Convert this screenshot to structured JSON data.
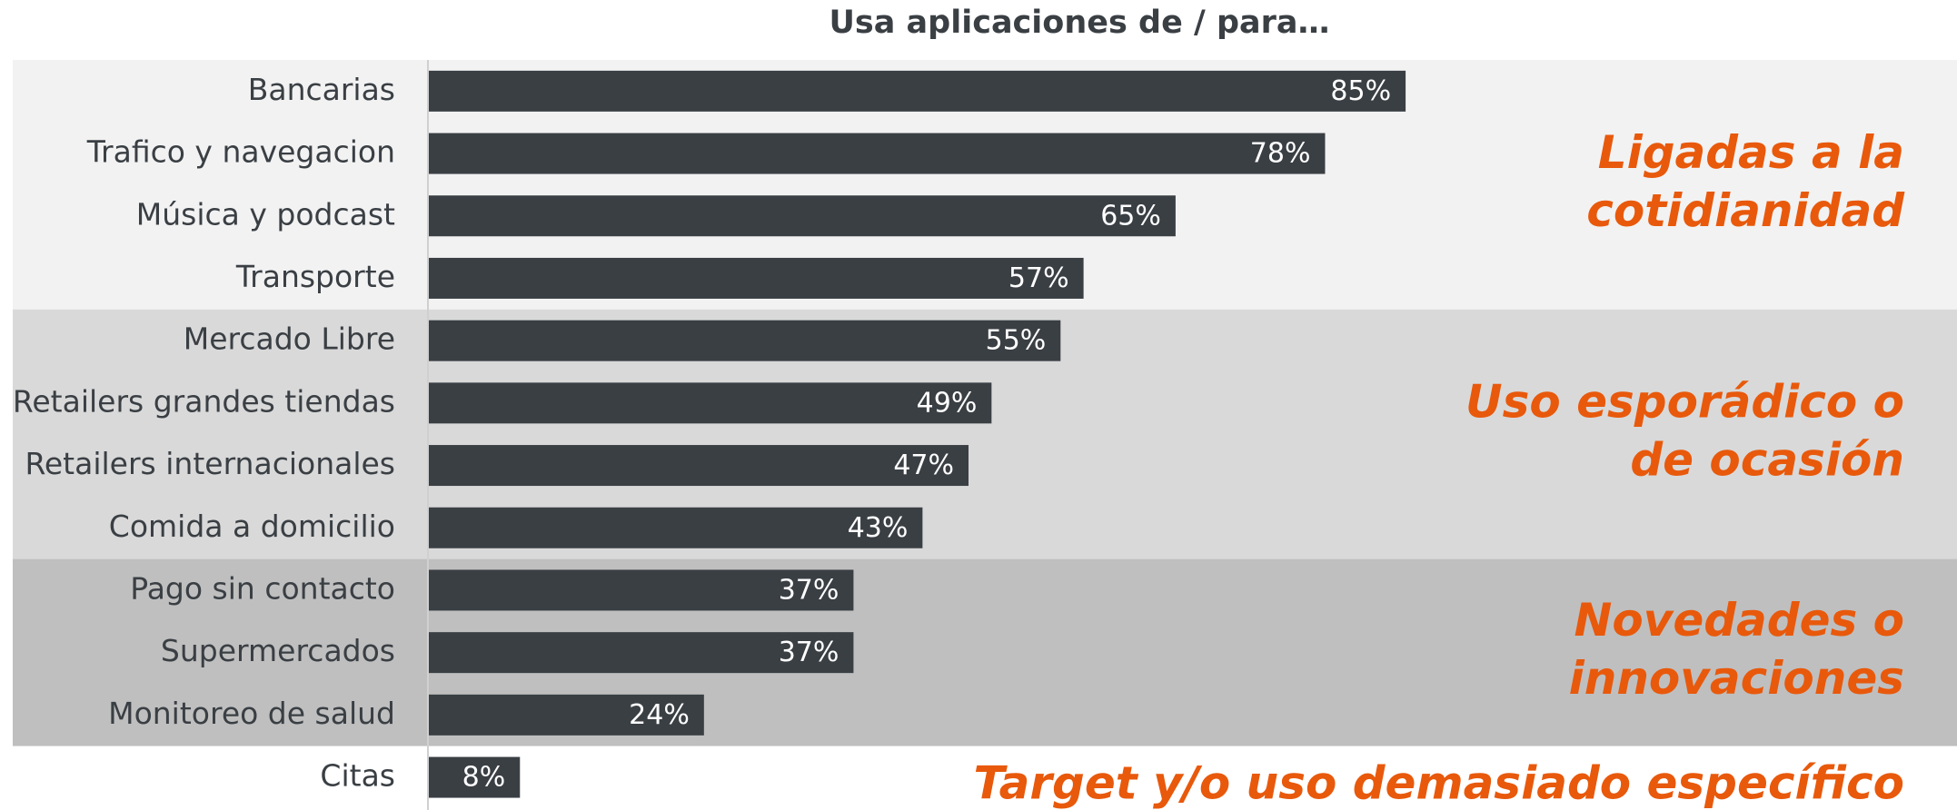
{
  "chart_data": {
    "type": "bar",
    "orientation": "horizontal",
    "title": "Usa aplicaciones de / para…",
    "xlim": [
      0,
      100
    ],
    "bar_color": "#3a3f44",
    "annotation_color": "#e8590c",
    "groups": [
      {
        "background": "#f2f2f2",
        "annotation": [
          "Ligadas a la",
          "cotidianidad"
        ],
        "categories": [
          "Bancarias",
          "Trafico y navegacion",
          "Música y podcast",
          "Transporte"
        ],
        "values": [
          85,
          78,
          65,
          57
        ],
        "value_labels": [
          "85%",
          "78%",
          "65%",
          "57%"
        ]
      },
      {
        "background": "#d9d9d9",
        "annotation": [
          "Uso esporádico o",
          "de ocasión"
        ],
        "categories": [
          "Mercado Libre",
          "Retailers grandes tiendas",
          "Retailers internacionales",
          "Comida a domicilio"
        ],
        "values": [
          55,
          49,
          47,
          43
        ],
        "value_labels": [
          "55%",
          "49%",
          "47%",
          "43%"
        ]
      },
      {
        "background": "#bfbfbf",
        "annotation": [
          "Novedades o",
          "innovaciones"
        ],
        "categories": [
          "Pago sin contacto",
          "Supermercados",
          "Monitoreo de salud"
        ],
        "values": [
          37,
          37,
          24
        ],
        "value_labels": [
          "37%",
          "37%",
          "24%"
        ]
      },
      {
        "background": "#ffffff",
        "annotation": [
          "Target y/o uso demasiado específico"
        ],
        "categories": [
          "Citas"
        ],
        "values": [
          8
        ],
        "value_labels": [
          "8%"
        ]
      }
    ]
  }
}
